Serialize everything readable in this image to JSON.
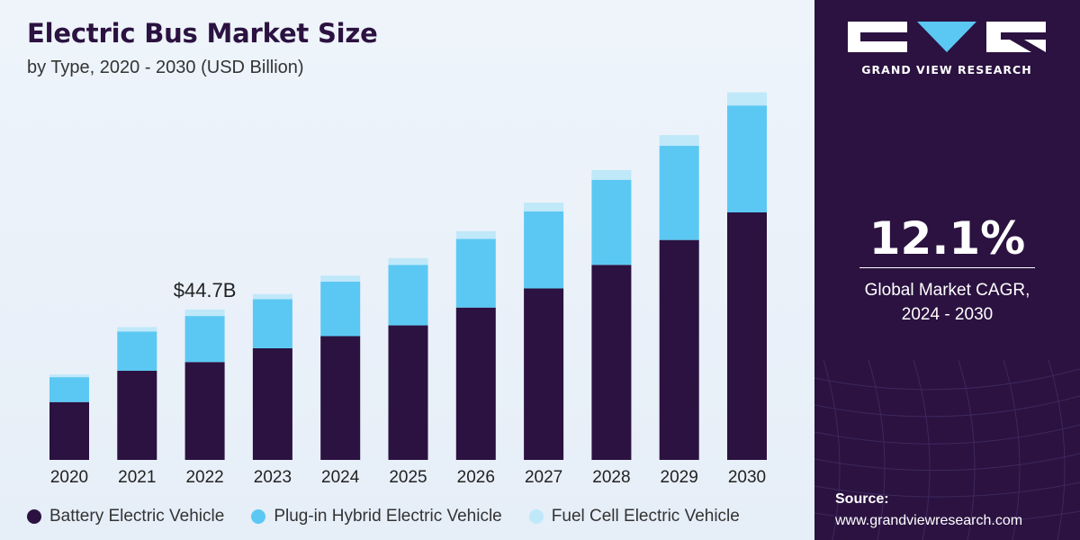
{
  "header": {
    "title": "Electric Bus Market Size",
    "subtitle": "by Type, 2020 - 2030 (USD Billion)"
  },
  "chart_data": {
    "type": "bar",
    "stacked": true,
    "categories": [
      "2020",
      "2021",
      "2022",
      "2023",
      "2024",
      "2025",
      "2026",
      "2027",
      "2028",
      "2029",
      "2030"
    ],
    "series": [
      {
        "name": "Battery Electric Vehicle",
        "color": "#2b1240",
        "values": [
          17.2,
          26.5,
          29.1,
          33.2,
          36.8,
          40.0,
          45.3,
          51.0,
          58.0,
          65.4,
          73.6
        ]
      },
      {
        "name": "Plug-in Hybrid Electric Vehicle",
        "color": "#5bc8f3",
        "values": [
          7.4,
          11.7,
          13.7,
          14.6,
          16.2,
          18.0,
          20.4,
          22.9,
          25.3,
          28.0,
          31.8
        ]
      },
      {
        "name": "Fuel Cell Electric Vehicle",
        "color": "#bfe8f9",
        "values": [
          0.8,
          1.3,
          1.9,
          1.5,
          1.8,
          2.0,
          2.3,
          2.6,
          2.9,
          3.2,
          3.9
        ]
      }
    ],
    "annotations": [
      {
        "category": "2022",
        "text": "$44.7B"
      }
    ],
    "ylim": [
      0,
      110
    ],
    "xlabel": "",
    "ylabel": "",
    "grid": false,
    "legend": "bottom"
  },
  "sidebar": {
    "brand": "GRAND VIEW RESEARCH",
    "cagr_value": "12.1%",
    "cagr_label_line1": "Global Market CAGR,",
    "cagr_label_line2": "2024 - 2030",
    "source_title": "Source:",
    "source_url": "www.grandviewresearch.com"
  },
  "colors": {
    "accent_dark": "#2b1240",
    "accent_light_blue": "#5bc8f3",
    "accent_pale_blue": "#bfe8f9"
  }
}
